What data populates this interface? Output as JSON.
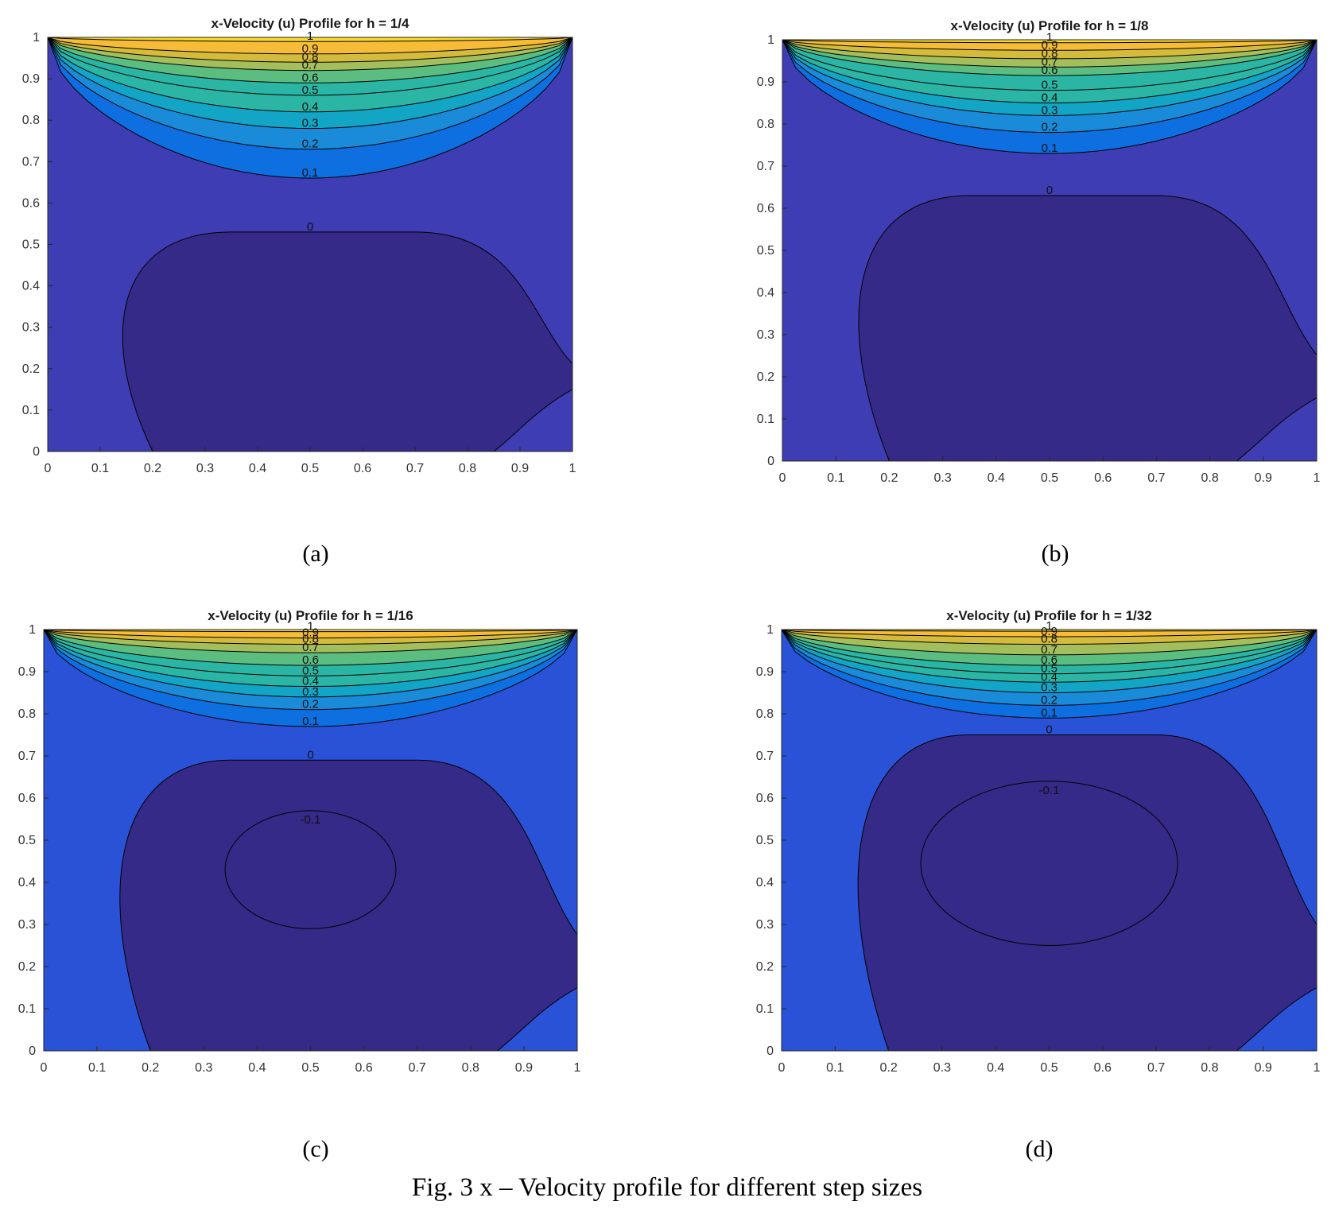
{
  "figure": {
    "caption": "Fig. 3 x – Velocity profile for different step sizes"
  },
  "colors": {
    "deep": "#352a87",
    "base": "#3e3db4",
    "blue": "#2a52d6",
    "brightblue": "#0d6fe0",
    "midblue": "#1a8bd8",
    "cyan": "#13a5c6",
    "teal": "#2bb5a4",
    "green": "#5cbd80",
    "lime": "#a4be5c",
    "olive": "#d4bb3c",
    "orange": "#f6bc37",
    "yellow": "#f9d92a"
  },
  "chart_data": [
    {
      "panel_label": "(a)",
      "type": "contour",
      "title": "x-Velocity (u) Profile for h = 1/4",
      "xlim": [
        0,
        1
      ],
      "ylim": [
        0,
        1
      ],
      "xticks": [
        "0",
        "0.1",
        "0.2",
        "0.3",
        "0.4",
        "0.5",
        "0.6",
        "0.7",
        "0.8",
        "0.9",
        "1"
      ],
      "yticks": [
        "0",
        "0.1",
        "0.2",
        "0.3",
        "0.4",
        "0.5",
        "0.6",
        "0.7",
        "0.8",
        "0.9",
        "1"
      ],
      "levels": [
        {
          "value": "0",
          "y_at_center": 0.53,
          "min_y": 0.0
        },
        {
          "value": "0.1",
          "y_at_center": 0.66
        },
        {
          "value": "0.2",
          "y_at_center": 0.73
        },
        {
          "value": "0.3",
          "y_at_center": 0.78
        },
        {
          "value": "0.4",
          "y_at_center": 0.82
        },
        {
          "value": "0.5",
          "y_at_center": 0.86
        },
        {
          "value": "0.6",
          "y_at_center": 0.89
        },
        {
          "value": "0.7",
          "y_at_center": 0.92
        },
        {
          "value": "0.8",
          "y_at_center": 0.94
        },
        {
          "value": "0.9",
          "y_at_center": 0.96
        },
        {
          "value": "1",
          "y_at_center": 0.99
        }
      ]
    },
    {
      "panel_label": "(b)",
      "type": "contour",
      "title": "x-Velocity (u) Profile for h = 1/8",
      "xlim": [
        0,
        1
      ],
      "ylim": [
        0,
        1
      ],
      "xticks": [
        "0",
        "0.1",
        "0.2",
        "0.3",
        "0.4",
        "0.5",
        "0.6",
        "0.7",
        "0.8",
        "0.9",
        "1"
      ],
      "yticks": [
        "0",
        "0.1",
        "0.2",
        "0.3",
        "0.4",
        "0.5",
        "0.6",
        "0.7",
        "0.8",
        "0.9",
        "1"
      ],
      "levels": [
        {
          "value": "0",
          "y_at_center": 0.63,
          "min_y": 0.0
        },
        {
          "value": "0.1",
          "y_at_center": 0.73
        },
        {
          "value": "0.2",
          "y_at_center": 0.78
        },
        {
          "value": "0.3",
          "y_at_center": 0.82
        },
        {
          "value": "0.4",
          "y_at_center": 0.85
        },
        {
          "value": "0.5",
          "y_at_center": 0.88
        },
        {
          "value": "0.6",
          "y_at_center": 0.915
        },
        {
          "value": "0.7",
          "y_at_center": 0.935
        },
        {
          "value": "0.8",
          "y_at_center": 0.955
        },
        {
          "value": "0.9",
          "y_at_center": 0.975
        },
        {
          "value": "1",
          "y_at_center": 0.993
        }
      ]
    },
    {
      "panel_label": "(c)",
      "type": "contour",
      "title": "x-Velocity (u) Profile for h = 1/16",
      "xlim": [
        0,
        1
      ],
      "ylim": [
        0,
        1
      ],
      "xticks": [
        "0",
        "0.1",
        "0.2",
        "0.3",
        "0.4",
        "0.5",
        "0.6",
        "0.7",
        "0.8",
        "0.9",
        "1"
      ],
      "yticks": [
        "0",
        "0.1",
        "0.2",
        "0.3",
        "0.4",
        "0.5",
        "0.6",
        "0.7",
        "0.8",
        "0.9",
        "1"
      ],
      "levels": [
        {
          "value": "-0.1",
          "y_range": [
            0.29,
            0.57
          ],
          "x_range": [
            0.34,
            0.66
          ]
        },
        {
          "value": "0",
          "y_at_center": 0.69,
          "min_y": 0.0
        },
        {
          "value": "0.1",
          "y_at_center": 0.77
        },
        {
          "value": "0.2",
          "y_at_center": 0.81
        },
        {
          "value": "0.3",
          "y_at_center": 0.84
        },
        {
          "value": "0.4",
          "y_at_center": 0.865
        },
        {
          "value": "0.5",
          "y_at_center": 0.89
        },
        {
          "value": "0.6",
          "y_at_center": 0.915
        },
        {
          "value": "0.7",
          "y_at_center": 0.945
        },
        {
          "value": "0.8",
          "y_at_center": 0.965
        },
        {
          "value": "0.9",
          "y_at_center": 0.98
        },
        {
          "value": "1",
          "y_at_center": 0.995
        }
      ]
    },
    {
      "panel_label": "(d)",
      "type": "contour",
      "title": "x-Velocity (u) Profile for h = 1/32",
      "xlim": [
        0,
        1
      ],
      "ylim": [
        0,
        1
      ],
      "xticks": [
        "0",
        "0.1",
        "0.2",
        "0.3",
        "0.4",
        "0.5",
        "0.6",
        "0.7",
        "0.8",
        "0.9",
        "1"
      ],
      "yticks": [
        "0",
        "0.1",
        "0.2",
        "0.3",
        "0.4",
        "0.5",
        "0.6",
        "0.7",
        "0.8",
        "0.9",
        "1"
      ],
      "levels": [
        {
          "value": "-0.1",
          "y_range": [
            0.25,
            0.64
          ],
          "x_range": [
            0.26,
            0.74
          ]
        },
        {
          "value": "0",
          "y_at_center": 0.75,
          "min_y": 0.0
        },
        {
          "value": "0.1",
          "y_at_center": 0.79
        },
        {
          "value": "0.2",
          "y_at_center": 0.82
        },
        {
          "value": "0.3",
          "y_at_center": 0.85
        },
        {
          "value": "0.4",
          "y_at_center": 0.875
        },
        {
          "value": "0.5",
          "y_at_center": 0.895
        },
        {
          "value": "0.6",
          "y_at_center": 0.915
        },
        {
          "value": "0.7",
          "y_at_center": 0.94
        },
        {
          "value": "0.8",
          "y_at_center": 0.965
        },
        {
          "value": "0.9",
          "y_at_center": 0.983
        },
        {
          "value": "1",
          "y_at_center": 0.996
        }
      ]
    }
  ]
}
